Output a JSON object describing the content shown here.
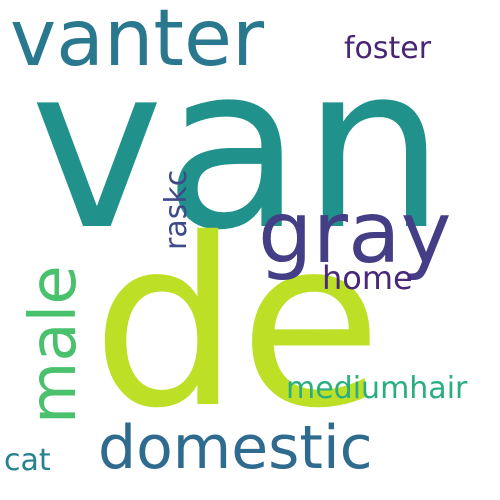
{
  "word_cloud": {
    "words": [
      {
        "text": "van",
        "color": "#21918c"
      },
      {
        "text": "de",
        "color": "#bddf26"
      },
      {
        "text": "vanter",
        "color": "#2a788e"
      },
      {
        "text": "gray",
        "color": "#433e85"
      },
      {
        "text": "domestic",
        "color": "#2f6b8e"
      },
      {
        "text": "male",
        "color": "#4ac16d"
      },
      {
        "text": "foster",
        "color": "#482575"
      },
      {
        "text": "raskc",
        "color": "#3e4a89"
      },
      {
        "text": "home",
        "color": "#482878"
      },
      {
        "text": "mediumhair",
        "color": "#29af7f"
      },
      {
        "text": "cat",
        "color": "#26828e"
      }
    ]
  }
}
